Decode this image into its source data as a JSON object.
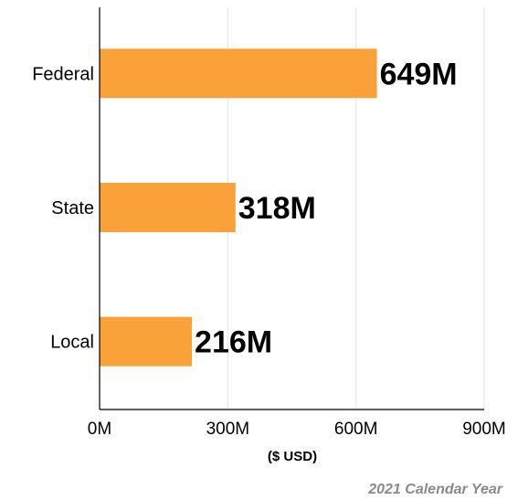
{
  "chart_data": {
    "type": "bar",
    "orientation": "horizontal",
    "categories": [
      "Federal",
      "State",
      "Local"
    ],
    "values": [
      649,
      318,
      216
    ],
    "value_labels": [
      "649M",
      "318M",
      "216M"
    ],
    "xlabel": "($ USD)",
    "xlim": [
      0,
      900
    ],
    "x_ticks": [
      0,
      300,
      600,
      900
    ],
    "x_tick_labels": [
      "0M",
      "300M",
      "600M",
      "900M"
    ],
    "grid": "vertical",
    "bar_color": "#FBA13A",
    "footnote": "2021 Calendar Year"
  }
}
